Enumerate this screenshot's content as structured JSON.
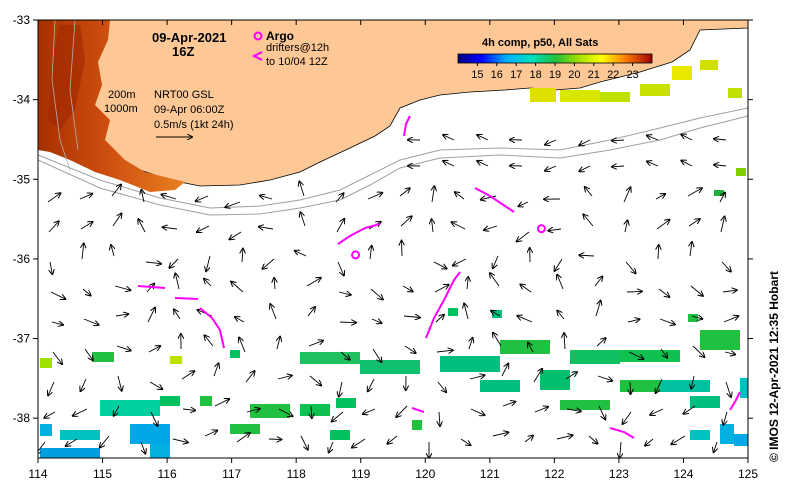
{
  "title": {
    "date": "09-Apr-2021",
    "hour": "16Z"
  },
  "legend": {
    "argo_label": "Argo",
    "drifters_line1": "drifters@12h",
    "drifters_line2": "to 10/04 12Z",
    "isobath_shallow": "200m",
    "isobath_deep": "1000m",
    "altimetry_line1": "NRT00 GSL",
    "altimetry_line2": "09-Apr 06:00Z",
    "velocity_scale": "0.5m/s (1kt 24h)"
  },
  "colorbar": {
    "title": "4h comp, p50, All Sats",
    "ticks": [
      "15",
      "16",
      "17",
      "18",
      "19",
      "20",
      "21",
      "22",
      "23"
    ],
    "min": 14,
    "max": 24
  },
  "axes": {
    "x_ticks": [
      "114",
      "115",
      "116",
      "117",
      "118",
      "119",
      "120",
      "121",
      "122",
      "123",
      "124",
      "125"
    ],
    "y_ticks": [
      "-33",
      "-34",
      "-35",
      "-36",
      "-37",
      "-38"
    ],
    "x_range": [
      114,
      125
    ],
    "y_range": [
      -38.5,
      -33
    ]
  },
  "credit": "© IMOS 12-Apr-2021 12:35 Hobart",
  "colors": {
    "land": "#fdc896",
    "argo": "#ff00ff",
    "drifter": "#ff00ff",
    "isobath": "#a0a0a0",
    "vector": "#000000"
  },
  "argo_floats": [
    {
      "lon": 121.8,
      "lat": -35.62
    },
    {
      "lon": 118.92,
      "lat": -35.95
    }
  ]
}
